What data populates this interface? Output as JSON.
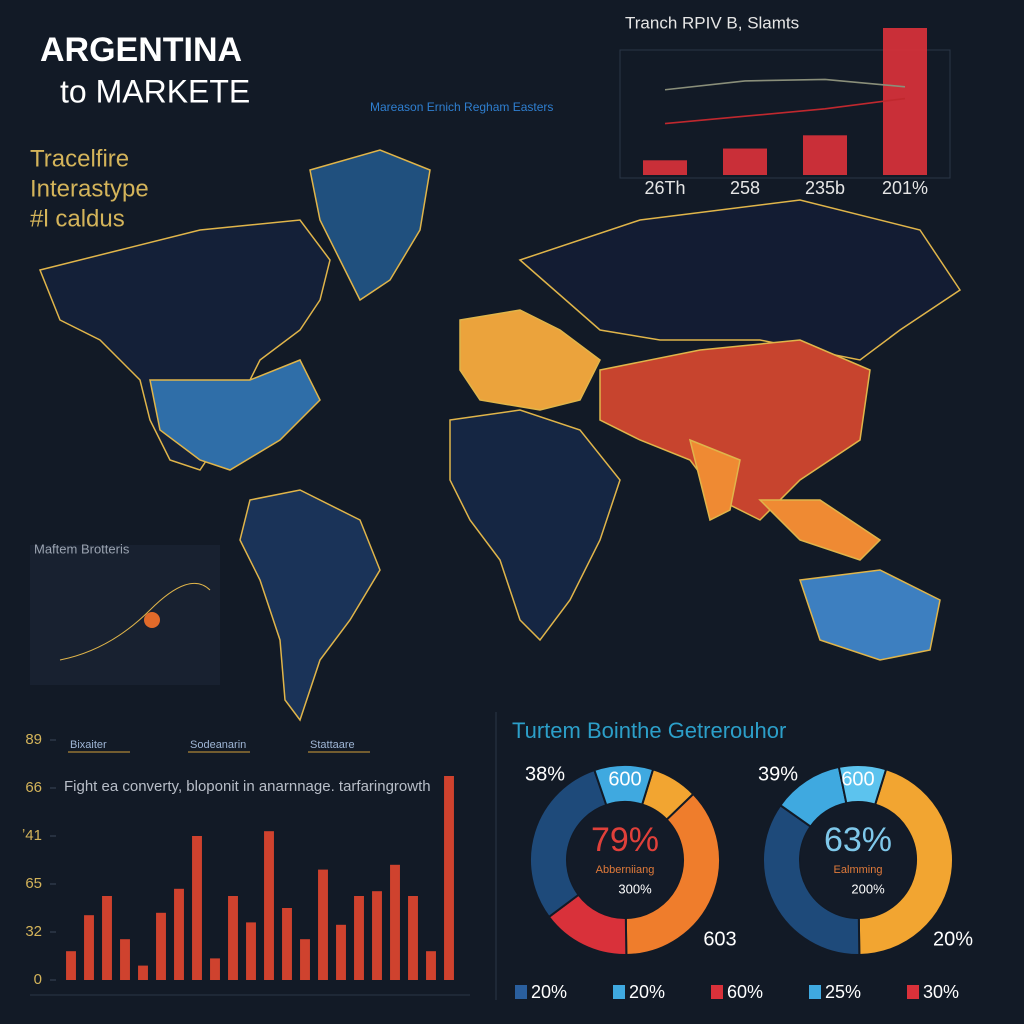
{
  "header": {
    "title": "ARGENTINA",
    "subtitle": "to MARKETE"
  },
  "side_text": [
    "Tracelfire",
    "Interastype",
    "#l caldus"
  ],
  "map_caption": "Mareason Ernich Regham Easters",
  "inset_title": "Maftem Brotteris",
  "donut_panel": {
    "title": "Turtem Bointhe Getrerouhor",
    "legend": [
      {
        "label": "20%",
        "color": "#2a5f9e"
      },
      {
        "label": "20%",
        "color": "#3fa9e0"
      },
      {
        "label": "60%",
        "color": "#d9313a"
      },
      {
        "label": "25%",
        "color": "#3fa9e0"
      },
      {
        "label": "30%",
        "color": "#d9313a"
      }
    ]
  },
  "chart_data": [
    {
      "type": "bar",
      "title": "Tranch RPIV B, Slamts",
      "categories": [
        "26Th",
        "258",
        "235b",
        "201%"
      ],
      "values": [
        10,
        18,
        27,
        100
      ],
      "color": "#d9313a",
      "ylim": [
        0,
        100
      ],
      "series": [
        {
          "color": "#8a8f7a",
          "values": [
            58,
            64,
            65,
            60
          ]
        },
        {
          "color": "#c0282e",
          "values": [
            35,
            40,
            45,
            52
          ]
        }
      ]
    },
    {
      "type": "bar",
      "subtitle": "Fight ea converty, bloponit in anarnnage. tarfaringrowth",
      "legend": [
        "Bixaiter",
        "Sodeanarin",
        "Stattaare"
      ],
      "values": [
        12,
        27,
        35,
        17,
        6,
        28,
        38,
        60,
        9,
        35,
        24,
        62,
        30,
        17,
        46,
        23,
        35,
        37,
        48,
        35,
        12,
        85
      ],
      "color": "#e0452f",
      "ylim": [
        0,
        100
      ],
      "yticks": [
        0,
        {
          "value": 20,
          "label": "32"
        },
        {
          "value": 40,
          "label": "65"
        },
        {
          "value": 60,
          "label": "ʼ41"
        },
        {
          "value": 80,
          "label": "66"
        },
        {
          "value": 100,
          "label": "89"
        }
      ]
    },
    {
      "type": "pie",
      "center_label": "79%",
      "center_sub": "Abberniiang",
      "center_note": "300%",
      "annotations": [
        "38%",
        "600",
        "603"
      ],
      "values": [
        8,
        37,
        15,
        30,
        10
      ],
      "colors": [
        "#f2a531",
        "#ef7d2c",
        "#d9313a",
        "#1e4a7a",
        "#3fa9e0"
      ]
    },
    {
      "type": "pie",
      "center_label": "63%",
      "center_sub": "Ealmming",
      "center_note": "200%",
      "annotations": [
        "39%",
        "600",
        "20%"
      ],
      "values": [
        45,
        35,
        12,
        8
      ],
      "colors": [
        "#f2a531",
        "#1e4a7a",
        "#3fa9e0",
        "#5cc3ee"
      ]
    }
  ]
}
